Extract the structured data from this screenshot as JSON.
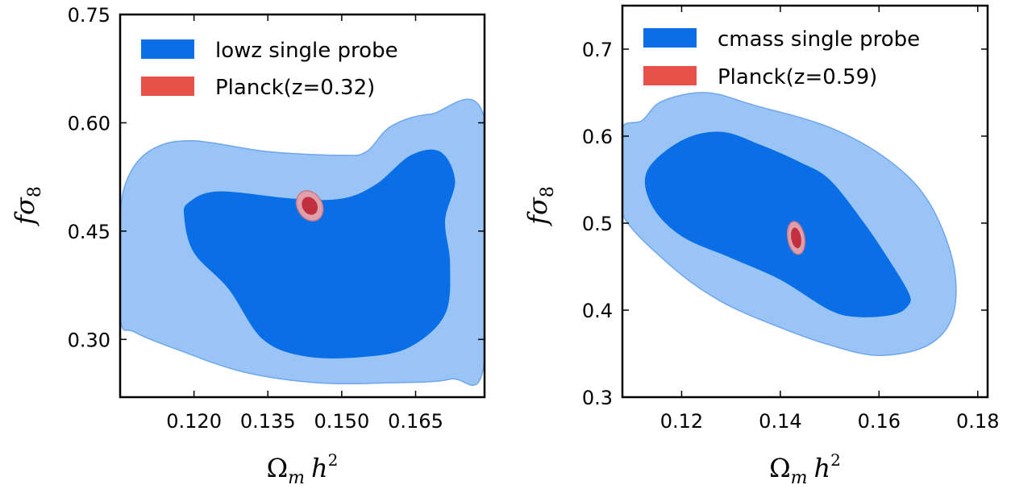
{
  "chart_data": [
    {
      "type": "contour",
      "xlabel": "Ω_m h²",
      "ylabel": "fσ₈",
      "xlim": [
        0.105,
        0.179
      ],
      "ylim": [
        0.22,
        0.75
      ],
      "xticks": [
        0.12,
        0.135,
        0.15,
        0.165
      ],
      "xtick_labels": [
        "0.120",
        "0.135",
        "0.150",
        "0.165"
      ],
      "yticks": [
        0.3,
        0.45,
        0.6,
        0.75
      ],
      "ytick_labels": [
        "0.30",
        "0.45",
        "0.60",
        "0.75"
      ],
      "legend_position": "top-left",
      "series": [
        {
          "name": "lowz single probe",
          "color_outer": "#9ac4f5",
          "color_inner": "#0a6fe6",
          "outer_contour": [
            [
              0.105,
              0.33
            ],
            [
              0.105,
              0.47
            ],
            [
              0.107,
              0.53
            ],
            [
              0.112,
              0.565
            ],
            [
              0.12,
              0.575
            ],
            [
              0.135,
              0.56
            ],
            [
              0.15,
              0.555
            ],
            [
              0.155,
              0.56
            ],
            [
              0.16,
              0.595
            ],
            [
              0.168,
              0.612
            ],
            [
              0.179,
              0.605
            ],
            [
              0.179,
              0.27
            ],
            [
              0.172,
              0.245
            ],
            [
              0.16,
              0.24
            ],
            [
              0.145,
              0.24
            ],
            [
              0.13,
              0.255
            ],
            [
              0.117,
              0.285
            ],
            [
              0.108,
              0.31
            ]
          ],
          "inner_contour": [
            [
              0.118,
              0.47
            ],
            [
              0.119,
              0.49
            ],
            [
              0.125,
              0.505
            ],
            [
              0.14,
              0.495
            ],
            [
              0.15,
              0.495
            ],
            [
              0.157,
              0.515
            ],
            [
              0.164,
              0.555
            ],
            [
              0.17,
              0.56
            ],
            [
              0.173,
              0.52
            ],
            [
              0.171,
              0.465
            ],
            [
              0.172,
              0.405
            ],
            [
              0.171,
              0.335
            ],
            [
              0.164,
              0.29
            ],
            [
              0.155,
              0.276
            ],
            [
              0.143,
              0.276
            ],
            [
              0.134,
              0.3
            ],
            [
              0.127,
              0.37
            ],
            [
              0.12,
              0.42
            ]
          ]
        },
        {
          "name": "Planck(z=0.32)",
          "color_outer": "#e0a0ab",
          "color_inner": "#c0303f",
          "center": [
            0.1435,
            0.485
          ],
          "outer_radius": [
            0.0025,
            0.022
          ],
          "inner_radius": [
            0.0015,
            0.013
          ]
        }
      ]
    },
    {
      "type": "contour",
      "xlabel": "Ω_m h²",
      "ylabel": "fσ₈",
      "xlim": [
        0.108,
        0.182
      ],
      "ylim": [
        0.3,
        0.75
      ],
      "xticks": [
        0.12,
        0.14,
        0.16,
        0.18
      ],
      "xtick_labels": [
        "0.12",
        "0.14",
        "0.16",
        "0.18"
      ],
      "yticks": [
        0.3,
        0.4,
        0.5,
        0.6,
        0.7
      ],
      "ytick_labels": [
        "0.3",
        "0.4",
        "0.5",
        "0.6",
        "0.7"
      ],
      "legend_position": "top-left",
      "series": [
        {
          "name": "cmass single probe",
          "color_outer": "#9ac4f5",
          "color_inner": "#0a6fe6",
          "outer_contour": [
            [
              0.108,
              0.565
            ],
            [
              0.108,
              0.61
            ],
            [
              0.112,
              0.618
            ],
            [
              0.116,
              0.64
            ],
            [
              0.125,
              0.65
            ],
            [
              0.135,
              0.635
            ],
            [
              0.15,
              0.61
            ],
            [
              0.162,
              0.572
            ],
            [
              0.17,
              0.525
            ],
            [
              0.175,
              0.455
            ],
            [
              0.175,
              0.395
            ],
            [
              0.17,
              0.36
            ],
            [
              0.16,
              0.348
            ],
            [
              0.15,
              0.36
            ],
            [
              0.14,
              0.38
            ],
            [
              0.128,
              0.41
            ],
            [
              0.118,
              0.45
            ],
            [
              0.108,
              0.51
            ]
          ],
          "inner_contour": [
            [
              0.113,
              0.56
            ],
            [
              0.12,
              0.595
            ],
            [
              0.128,
              0.605
            ],
            [
              0.136,
              0.59
            ],
            [
              0.144,
              0.57
            ],
            [
              0.15,
              0.55
            ],
            [
              0.157,
              0.5
            ],
            [
              0.162,
              0.458
            ],
            [
              0.166,
              0.42
            ],
            [
              0.166,
              0.406
            ],
            [
              0.163,
              0.395
            ],
            [
              0.156,
              0.392
            ],
            [
              0.15,
              0.4
            ],
            [
              0.14,
              0.435
            ],
            [
              0.13,
              0.46
            ],
            [
              0.12,
              0.485
            ],
            [
              0.114,
              0.52
            ]
          ]
        },
        {
          "name": "Planck(z=0.59)",
          "color_outer": "#e0a0ab",
          "color_inner": "#c0303f",
          "center": [
            0.1432,
            0.483
          ],
          "outer_radius": [
            0.0017,
            0.019
          ],
          "inner_radius": [
            0.001,
            0.012
          ]
        }
      ]
    }
  ],
  "legend_colors": {
    "primary": "#0a6fe6",
    "planck": "#e8504a"
  }
}
